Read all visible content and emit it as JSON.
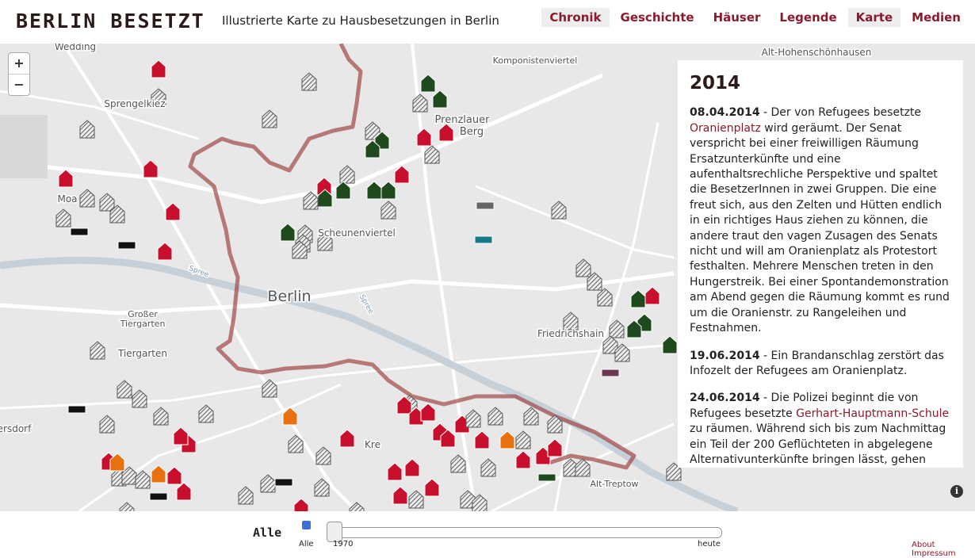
{
  "header": {
    "title": "BERLIN BESETZT",
    "subtitle": "Illustrierte Karte zu Hausbesetzungen in Berlin",
    "nav": [
      "Chronik",
      "Geschichte",
      "Häuser",
      "Legende",
      "Karte",
      "Medien"
    ]
  },
  "map": {
    "zoom": [
      "+",
      "−"
    ],
    "labels": [
      "Wedding",
      "Komponistenviertel",
      "Alt-Hohenschönhausen",
      "Sprengelkiez",
      "Prenzlauer",
      "Berg",
      "Moa",
      "Scheunenviertel",
      "Berlin",
      "Großer",
      "Tiergarten",
      "Tiergarten",
      "Friedrichshain",
      "ersdorf",
      "Kre",
      "Alt-Treptow",
      "Spree",
      "Spree"
    ]
  },
  "panel": {
    "year": "2014",
    "entries": [
      {
        "date": "08.04.2014",
        "segments": [
          {
            "text": " - Der von Refugees besetzte "
          },
          {
            "link": "Oranienplatz"
          },
          {
            "text": " wird geräumt. Der Senat verspricht bei einer freiwilligen Räumung Ersatzunterkünfte und eine aufenthaltsrechliche Perspektive und spaltet die BesetzerInnen in zwei Gruppen. Die eine freut sich, aus den Zelten und Hütten endlich in ein richtiges Haus ziehen zu können, die andere traut den vagen Zusagen des Senats nicht und will am Oranienplatz als Protestort festhalten. Mehrere Menschen treten in den Hungerstreik. Bei einer Spontandemonstration am Abend gegen die Räumung kommt es rund um die Oranienstr. zu Rangeleihen und Festnahmen."
          }
        ]
      },
      {
        "date": "19.06.2014",
        "segments": [
          {
            "text": " - Ein Brandanschlag zerstört das Infozelt der Refugees am Oranienplatz."
          }
        ]
      },
      {
        "date": "24.06.2014",
        "segments": [
          {
            "text": " - Die Polizei beginnt die von Refugees besetzte "
          },
          {
            "link": "Gerhart-Hauptmann-Schule"
          },
          {
            "text": " zu räumen. Während sich bis zum Nachmittag ein Teil der 200 Geflüchteten in abgelegene Alternativunterkünfte bringen lässt, gehen"
          }
        ]
      }
    ]
  },
  "footer": {
    "filter_label": "Alle",
    "checkbox_label": "Alle",
    "slider_start": "1970",
    "slider_end": "heute",
    "links": [
      "About",
      "Impressum"
    ]
  }
}
